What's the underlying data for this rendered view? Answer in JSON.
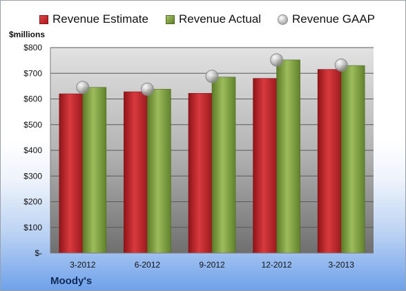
{
  "legend": {
    "estimate": "Revenue Estimate",
    "actual": "Revenue Actual",
    "gaap": "Revenue GAAP"
  },
  "unit_label": "$millions",
  "company": "Moody's",
  "colors": {
    "estimate": "#c62a2f",
    "actual": "#8aa84a",
    "gaap": "#bdbdbd"
  },
  "chart_data": {
    "type": "bar",
    "title": "",
    "xlabel": "",
    "ylabel": "$millions",
    "categories": [
      "3-2012",
      "6-2012",
      "9-2012",
      "12-2012",
      "3-2013"
    ],
    "series": [
      {
        "name": "Revenue Estimate",
        "type": "bar",
        "values": [
          620,
          628,
          622,
          680,
          715
        ]
      },
      {
        "name": "Revenue Actual",
        "type": "bar",
        "values": [
          645,
          638,
          685,
          752,
          730
        ]
      },
      {
        "name": "Revenue GAAP",
        "type": "scatter",
        "values": [
          645,
          638,
          688,
          752,
          732
        ]
      }
    ],
    "ylim": [
      0,
      800
    ],
    "yticks": [
      0,
      100,
      200,
      300,
      400,
      500,
      600,
      700,
      800
    ],
    "ytick_labels": [
      "$-",
      "$100",
      "$200",
      "$300",
      "$400",
      "$500",
      "$600",
      "$700",
      "$800"
    ],
    "grid": true,
    "legend_position": "top"
  }
}
